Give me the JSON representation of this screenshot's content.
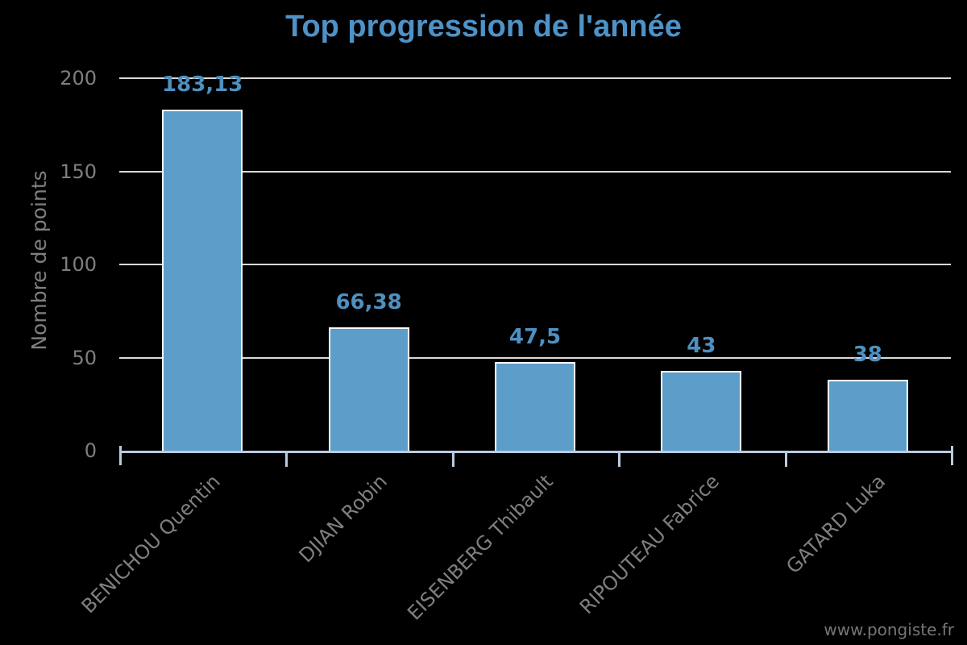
{
  "header": {
    "title": "Top progression de l'année"
  },
  "footer": {
    "watermark": "www.pongiste.fr"
  },
  "chart_data": {
    "type": "bar",
    "title": "Top progression de l'année",
    "xlabel": "",
    "ylabel": "Nombre de points",
    "categories": [
      "BENICHOU Quentin",
      "DJIAN Robin",
      "EISENBERG Thibault",
      "RIPOUTEAU Fabrice",
      "GATARD Luka"
    ],
    "values": [
      183.13,
      66.38,
      47.5,
      43,
      38
    ],
    "value_labels": [
      "183,13",
      "66,38",
      "47,5",
      "43",
      "38"
    ],
    "ylim": [
      0,
      200
    ],
    "yticks": [
      0,
      50,
      100,
      150,
      200
    ],
    "grid": true,
    "legend": "none",
    "decimal_separator": ",",
    "colors": {
      "background": "#000000",
      "bar_fill": "#5C9DCA",
      "bar_border": "#FFFFFF",
      "title_text": "#4D93C8",
      "value_label_text": "#4E90C0",
      "gridline": "#D9D9D9",
      "axis_line": "#B9CBE0",
      "axis_text": "#7F7F7F",
      "watermark_text": "#767676"
    }
  }
}
